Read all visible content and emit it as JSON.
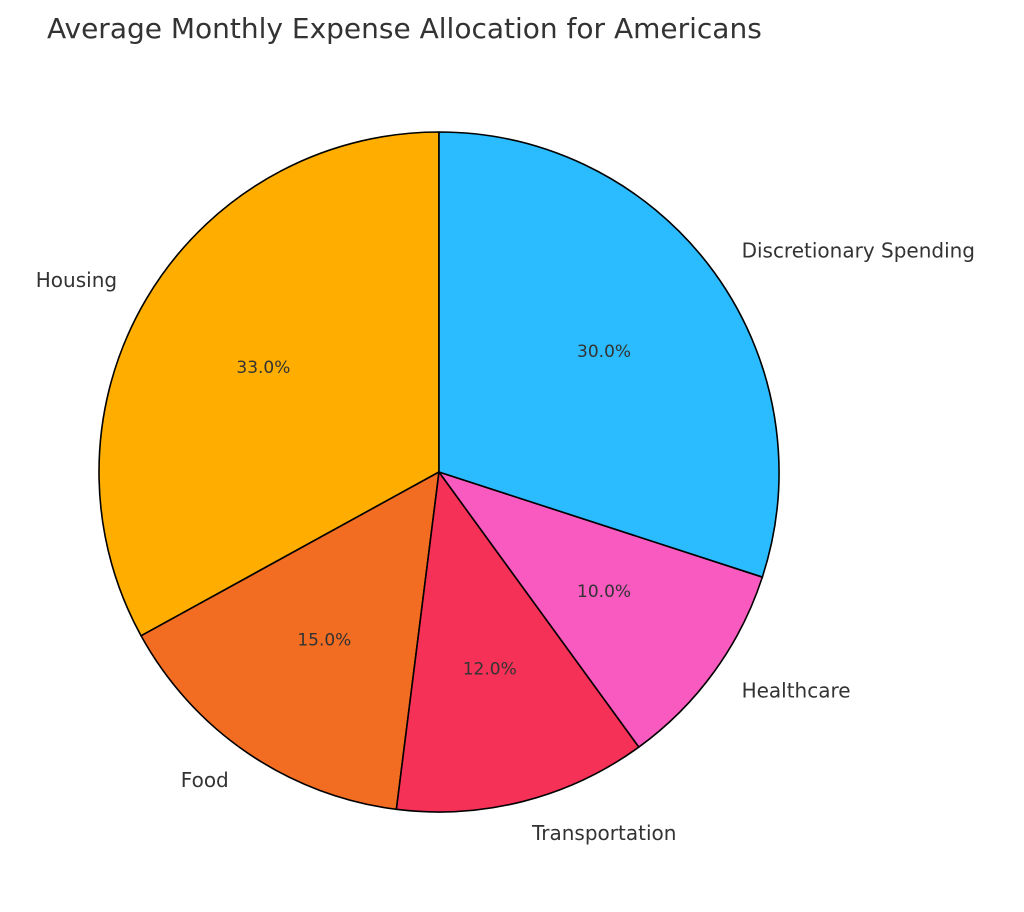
{
  "chart_data": {
    "type": "pie",
    "title": "Average Monthly Expense Allocation for Americans",
    "categories": [
      "Housing",
      "Food",
      "Transportation",
      "Healthcare",
      "Discretionary Spending"
    ],
    "values": [
      33,
      15,
      12,
      10,
      30
    ],
    "percent_labels": [
      "33.0%",
      "15.0%",
      "12.0%",
      "10.0%",
      "30.0%"
    ],
    "colors": [
      "#FFAE00",
      "#F26C22",
      "#F53157",
      "#F85AC0",
      "#2BBBFF"
    ],
    "start_angle_deg": 90,
    "direction": "counterclockwise",
    "edge_color": "#000000",
    "legend": "none"
  }
}
